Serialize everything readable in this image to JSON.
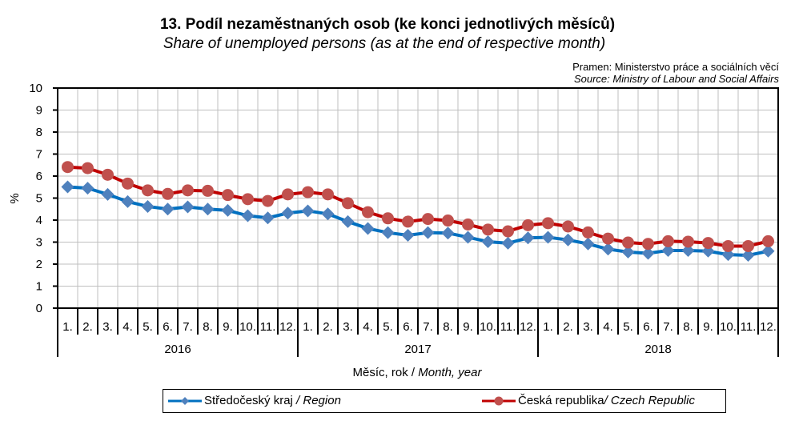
{
  "chart_data": {
    "type": "line",
    "title": "13. Podíl nezaměstnaných osob (ke konci jednotlivých měsíců)",
    "subtitle": "Share of unemployed persons (as at the end of respective month)",
    "source_cz": "Pramen: Ministerstvo práce a sociálních věcí",
    "source_en": "Source: Ministry of Labour and Social Affairs",
    "ylabel": "%",
    "xlabel_cz": "Měsíc, rok / ",
    "xlabel_en": "Month, year",
    "ylim": [
      0,
      10
    ],
    "yticks": [
      "0",
      "1",
      "2",
      "3",
      "4",
      "5",
      "6",
      "7",
      "8",
      "9",
      "10"
    ],
    "grid": true,
    "legend_position": "bottom",
    "years": [
      "2016",
      "2017",
      "2018"
    ],
    "months": [
      "1.",
      "2.",
      "3.",
      "4.",
      "5.",
      "6.",
      "7.",
      "8.",
      "9.",
      "10.",
      "11.",
      "12."
    ],
    "series": [
      {
        "name_cz": "Středočeský kraj",
        "name_en": "/ Region",
        "color": "#0070C0",
        "marker_color": "#4F81BD",
        "marker": "diamond",
        "values": [
          5.51,
          5.45,
          5.17,
          4.84,
          4.62,
          4.5,
          4.6,
          4.5,
          4.44,
          4.2,
          4.1,
          4.32,
          4.42,
          4.28,
          3.93,
          3.62,
          3.43,
          3.31,
          3.43,
          3.41,
          3.22,
          3.02,
          2.95,
          3.19,
          3.22,
          3.1,
          2.92,
          2.68,
          2.55,
          2.49,
          2.62,
          2.62,
          2.59,
          2.43,
          2.4,
          2.59
        ]
      },
      {
        "name_cz": "Česká republika",
        "name_en": "/ Czech Republic",
        "color": "#C00000",
        "marker_color": "#C0504D",
        "marker": "circle",
        "values": [
          6.41,
          6.36,
          6.06,
          5.66,
          5.35,
          5.19,
          5.35,
          5.33,
          5.14,
          4.95,
          4.87,
          5.17,
          5.27,
          5.17,
          4.77,
          4.36,
          4.08,
          3.93,
          4.05,
          3.98,
          3.8,
          3.57,
          3.49,
          3.77,
          3.86,
          3.71,
          3.44,
          3.16,
          2.98,
          2.92,
          3.04,
          3.02,
          2.96,
          2.82,
          2.82,
          3.04
        ]
      }
    ]
  }
}
